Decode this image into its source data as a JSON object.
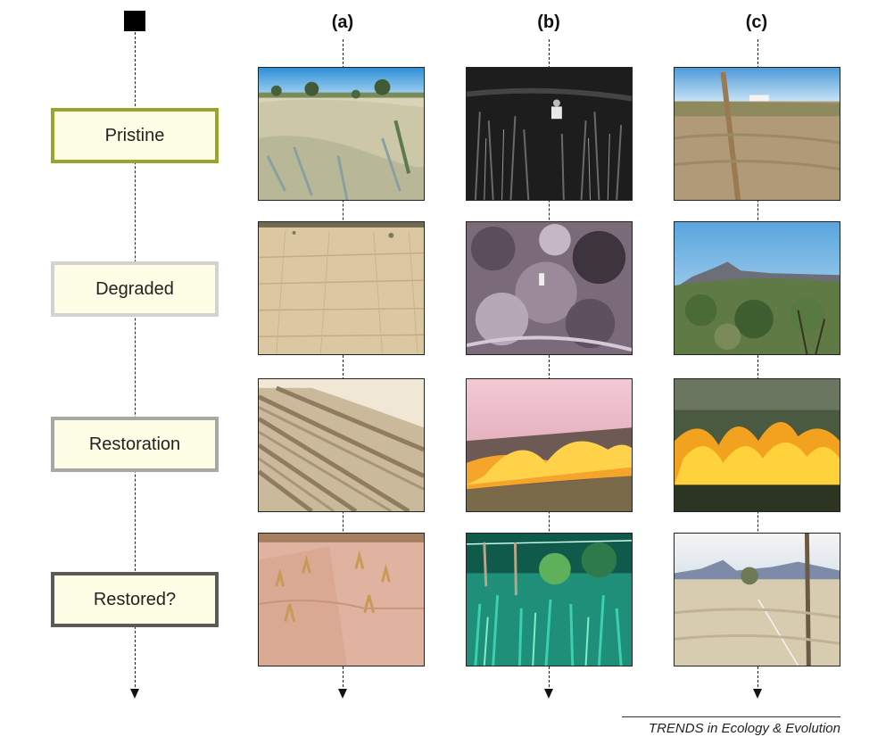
{
  "diagram": {
    "columns": [
      {
        "label": "(a)",
        "photos": [
          {
            "desc": "pristine grassland with scattered trees"
          },
          {
            "desc": "bare cracked soil"
          },
          {
            "desc": "ploughed furrows"
          },
          {
            "desc": "furrows with regrowing grass"
          }
        ]
      },
      {
        "label": "(b)",
        "photos": [
          {
            "desc": "black and white tall grass with person"
          },
          {
            "desc": "black and white dense shrubland"
          },
          {
            "desc": "prescribed fire burning grassland"
          },
          {
            "desc": "lush green vegetation"
          }
        ]
      },
      {
        "label": "(c)",
        "photos": [
          {
            "desc": "grassland with post and truck"
          },
          {
            "desc": "shrub-covered hills"
          },
          {
            "desc": "fire burning through shrubs"
          },
          {
            "desc": "grassland with fence post and mountains"
          }
        ]
      }
    ],
    "stages": [
      {
        "label": "Pristine",
        "border_color": "#9aa52b"
      },
      {
        "label": "Degraded",
        "border_color": "#d2d2d2"
      },
      {
        "label": "Restoration",
        "border_color": "#a7a7a7"
      },
      {
        "label": "Restored?",
        "border_color": "#5a5a5a"
      }
    ]
  },
  "credit": "TRENDS in Ecology & Evolution"
}
